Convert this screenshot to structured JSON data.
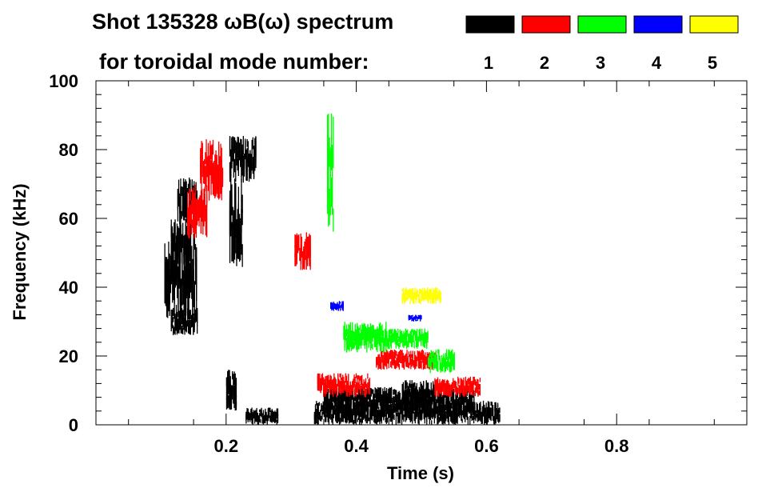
{
  "chart_data": {
    "type": "heatmap",
    "title_line1": "Shot 135328 ωB(ω) spectrum",
    "title_line2": "for toroidal mode number:",
    "xlabel": "Time (s)",
    "ylabel": "Frequency (kHz)",
    "xlim": [
      0.0,
      1.0
    ],
    "ylim": [
      0,
      100
    ],
    "x_ticks": [
      0.2,
      0.4,
      0.6,
      0.8
    ],
    "x_tick_labels": [
      "0.2",
      "0.4",
      "0.6",
      "0.8"
    ],
    "y_ticks": [
      0,
      20,
      40,
      60,
      80,
      100
    ],
    "y_tick_labels": [
      "0",
      "20",
      "40",
      "60",
      "80",
      "100"
    ],
    "grid": false,
    "legend_position": "top-right",
    "legend": [
      {
        "label": "1",
        "color": "#000000"
      },
      {
        "label": "2",
        "color": "#ff0000"
      },
      {
        "label": "3",
        "color": "#00ff00"
      },
      {
        "label": "4",
        "color": "#0000ff"
      },
      {
        "label": "5",
        "color": "#ffff00"
      }
    ],
    "regions": [
      {
        "mode": 1,
        "t": [
          0.105,
          0.155
        ],
        "f": [
          30,
          56
        ]
      },
      {
        "mode": 1,
        "t": [
          0.115,
          0.155
        ],
        "f": [
          26,
          34
        ]
      },
      {
        "mode": 1,
        "t": [
          0.115,
          0.145
        ],
        "f": [
          45,
          60
        ]
      },
      {
        "mode": 1,
        "t": [
          0.125,
          0.155
        ],
        "f": [
          58,
          72
        ]
      },
      {
        "mode": 1,
        "t": [
          0.205,
          0.245
        ],
        "f": [
          70,
          84
        ]
      },
      {
        "mode": 1,
        "t": [
          0.205,
          0.225
        ],
        "f": [
          45,
          72
        ]
      },
      {
        "mode": 1,
        "t": [
          0.2,
          0.215
        ],
        "f": [
          4,
          16
        ]
      },
      {
        "mode": 1,
        "t": [
          0.23,
          0.28
        ],
        "f": [
          0,
          5
        ]
      },
      {
        "mode": 1,
        "t": [
          0.335,
          0.62
        ],
        "f": [
          0,
          7
        ]
      },
      {
        "mode": 1,
        "t": [
          0.35,
          0.58
        ],
        "f": [
          3,
          11
        ]
      },
      {
        "mode": 1,
        "t": [
          0.47,
          0.52
        ],
        "f": [
          5,
          13
        ]
      },
      {
        "mode": 2,
        "t": [
          0.16,
          0.195
        ],
        "f": [
          65,
          83
        ]
      },
      {
        "mode": 2,
        "t": [
          0.14,
          0.17
        ],
        "f": [
          54,
          70
        ]
      },
      {
        "mode": 2,
        "t": [
          0.305,
          0.33
        ],
        "f": [
          45,
          56
        ]
      },
      {
        "mode": 2,
        "t": [
          0.34,
          0.42
        ],
        "f": [
          8,
          15
        ]
      },
      {
        "mode": 2,
        "t": [
          0.43,
          0.52
        ],
        "f": [
          16,
          22
        ]
      },
      {
        "mode": 2,
        "t": [
          0.52,
          0.59
        ],
        "f": [
          8,
          14
        ]
      },
      {
        "mode": 3,
        "t": [
          0.355,
          0.365
        ],
        "f": [
          56,
          92
        ]
      },
      {
        "mode": 3,
        "t": [
          0.38,
          0.45
        ],
        "f": [
          21,
          30
        ]
      },
      {
        "mode": 3,
        "t": [
          0.45,
          0.51
        ],
        "f": [
          22,
          28
        ]
      },
      {
        "mode": 3,
        "t": [
          0.51,
          0.55
        ],
        "f": [
          15,
          22
        ]
      },
      {
        "mode": 4,
        "t": [
          0.36,
          0.38
        ],
        "f": [
          33,
          36
        ]
      },
      {
        "mode": 4,
        "t": [
          0.48,
          0.5
        ],
        "f": [
          30,
          32
        ]
      },
      {
        "mode": 5,
        "t": [
          0.47,
          0.53
        ],
        "f": [
          35,
          40
        ]
      }
    ]
  }
}
